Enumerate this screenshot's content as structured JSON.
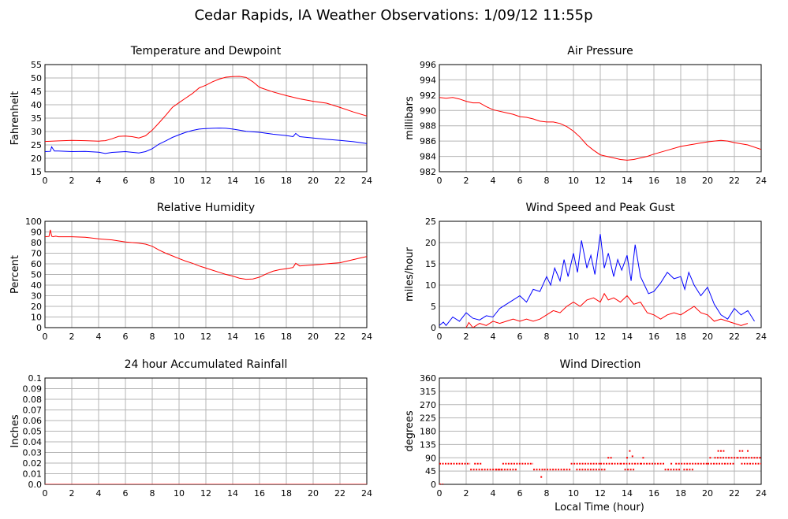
{
  "title": "Cedar Rapids, IA Weather Observations: 1/09/12 11:55p",
  "xlabel_bottom": "Local Time (hour)",
  "chart_data": [
    {
      "id": "temp",
      "type": "line",
      "title": "Temperature and Dewpoint",
      "ylabel": "Fahrenheit",
      "xlim": [
        0,
        24
      ],
      "ylim": [
        15,
        55
      ],
      "yticks": [
        15,
        20,
        25,
        30,
        35,
        40,
        45,
        50,
        55
      ],
      "xticks": [
        0,
        2,
        4,
        6,
        8,
        10,
        12,
        14,
        16,
        18,
        20,
        22,
        24
      ],
      "grid": true,
      "series": [
        {
          "color": "#ff0000",
          "x": [
            0,
            1,
            2,
            3,
            4,
            4.5,
            5,
            5.5,
            6,
            6.5,
            7,
            7.5,
            8,
            8.5,
            9,
            9.5,
            10,
            10.5,
            11,
            11.5,
            12,
            12.5,
            13,
            13.5,
            14,
            14.5,
            15,
            15.5,
            16,
            17,
            18,
            19,
            20,
            21,
            22,
            23,
            24
          ],
          "y": [
            26.3,
            26.5,
            26.7,
            26.6,
            26.4,
            26.6,
            27.3,
            28.2,
            28.3,
            28.1,
            27.6,
            28.4,
            30.5,
            33.2,
            36,
            39,
            40.8,
            42.5,
            44.2,
            46.3,
            47.3,
            48.6,
            49.6,
            50.3,
            50.5,
            50.6,
            50.2,
            48.6,
            46.5,
            44.8,
            43.4,
            42.2,
            41.3,
            40.6,
            39,
            37.3,
            35.8
          ]
        },
        {
          "color": "#0000ff",
          "x": [
            0,
            0.4,
            0.5,
            0.7,
            1,
            2,
            3,
            4,
            4.5,
            5,
            6,
            7,
            7.5,
            8,
            8.5,
            9,
            9.5,
            10,
            10.5,
            11,
            11.5,
            12,
            12.5,
            13,
            13.5,
            14,
            14.5,
            15,
            16,
            17,
            18,
            18.5,
            18.7,
            19,
            20,
            21,
            22,
            23,
            24
          ],
          "y": [
            22.5,
            22.6,
            24.3,
            22.7,
            22.7,
            22.5,
            22.6,
            22.3,
            21.8,
            22.2,
            22.5,
            22,
            22.5,
            23.6,
            25.3,
            26.5,
            27.8,
            28.8,
            29.7,
            30.4,
            30.9,
            31.1,
            31.2,
            31.3,
            31.2,
            30.9,
            30.5,
            30.1,
            29.7,
            29,
            28.5,
            28.1,
            29.3,
            28.1,
            27.6,
            27.1,
            26.7,
            26.2,
            25.5
          ]
        }
      ]
    },
    {
      "id": "pressure",
      "type": "line",
      "title": "Air Pressure",
      "ylabel": "millibars",
      "xlim": [
        0,
        24
      ],
      "ylim": [
        982,
        996
      ],
      "yticks": [
        982,
        984,
        986,
        988,
        990,
        992,
        994,
        996
      ],
      "xticks": [
        0,
        2,
        4,
        6,
        8,
        10,
        12,
        14,
        16,
        18,
        20,
        22,
        24
      ],
      "grid": true,
      "series": [
        {
          "color": "#ff0000",
          "x": [
            0,
            0.5,
            1,
            1.5,
            2,
            2.5,
            3,
            3.5,
            4,
            4.5,
            5,
            5.5,
            6,
            6.5,
            7,
            7.5,
            8,
            8.5,
            9,
            9.5,
            10,
            10.5,
            11,
            11.5,
            12,
            12.5,
            13,
            13.5,
            14,
            14.5,
            15,
            15.5,
            16,
            17,
            18,
            19,
            20,
            20.5,
            21,
            21.5,
            22,
            23,
            24
          ],
          "y": [
            991.7,
            991.6,
            991.7,
            991.5,
            991.2,
            991,
            991,
            990.5,
            990.1,
            989.9,
            989.7,
            989.5,
            989.2,
            989.1,
            988.9,
            988.6,
            988.5,
            988.5,
            988.3,
            987.9,
            987.3,
            986.5,
            985.5,
            984.8,
            984.2,
            984.0,
            983.8,
            983.6,
            983.5,
            983.6,
            983.8,
            984.0,
            984.3,
            984.8,
            985.3,
            985.6,
            985.9,
            986.0,
            986.1,
            986.0,
            985.8,
            985.5,
            984.9
          ]
        }
      ]
    },
    {
      "id": "humidity",
      "type": "line",
      "title": "Relative Humidity",
      "ylabel": "Percent",
      "xlim": [
        0,
        24
      ],
      "ylim": [
        0,
        100
      ],
      "yticks": [
        0,
        10,
        20,
        30,
        40,
        50,
        60,
        70,
        80,
        90,
        100
      ],
      "xticks": [
        0,
        2,
        4,
        6,
        8,
        10,
        12,
        14,
        16,
        18,
        20,
        22,
        24
      ],
      "grid": true,
      "series": [
        {
          "color": "#ff0000",
          "x": [
            0,
            0.3,
            0.4,
            0.5,
            0.6,
            0.8,
            1,
            2,
            3,
            4,
            5,
            6,
            7,
            7.5,
            8,
            8.5,
            9,
            9.5,
            10,
            10.5,
            11,
            11.5,
            12,
            12.5,
            13,
            13.5,
            14,
            14.5,
            15,
            15.5,
            16,
            16.5,
            17,
            17.5,
            18,
            18.5,
            18.7,
            19,
            19.5,
            20,
            20.5,
            21,
            21.5,
            22,
            22.5,
            23,
            23.5,
            24
          ],
          "y": [
            85.5,
            85.8,
            92,
            86,
            85.5,
            86,
            85.5,
            85.5,
            85,
            83.5,
            82.5,
            80.5,
            79.5,
            78.5,
            76.5,
            73,
            70,
            67.5,
            65,
            62.5,
            60.5,
            58,
            56,
            54,
            52,
            50,
            48.5,
            46.5,
            45.5,
            45.8,
            47.5,
            50.5,
            53,
            54.5,
            55.5,
            56.5,
            60.5,
            58,
            58.5,
            59,
            59.5,
            60,
            60.5,
            61,
            62.5,
            64,
            65.5,
            66.8
          ]
        }
      ]
    },
    {
      "id": "wind",
      "type": "line",
      "title": "Wind Speed and Peak Gust",
      "ylabel": "miles/hour",
      "xlim": [
        0,
        24
      ],
      "ylim": [
        0,
        25
      ],
      "yticks": [
        0,
        5,
        10,
        15,
        20,
        25
      ],
      "xticks": [
        0,
        2,
        4,
        6,
        8,
        10,
        12,
        14,
        16,
        18,
        20,
        22,
        24
      ],
      "grid": true,
      "series": [
        {
          "color": "#0000ff",
          "x": [
            0,
            0.3,
            0.5,
            1,
            1.5,
            2,
            2.5,
            3,
            3.5,
            4,
            4.5,
            5,
            5.5,
            6,
            6.5,
            7,
            7.5,
            8,
            8.3,
            8.6,
            9,
            9.3,
            9.6,
            10,
            10.3,
            10.6,
            11,
            11.3,
            11.6,
            12,
            12.3,
            12.6,
            13,
            13.3,
            13.6,
            14,
            14.3,
            14.6,
            15,
            15.3,
            15.6,
            16,
            16.5,
            17,
            17.5,
            18,
            18.3,
            18.6,
            19,
            19.5,
            20,
            20.5,
            21,
            21.5,
            22,
            22.5,
            23,
            23.5
          ],
          "y": [
            0.5,
            1.3,
            0.5,
            2.5,
            1.5,
            3.5,
            2.2,
            1.8,
            2.8,
            2.5,
            4.5,
            5.5,
            6.5,
            7.5,
            6,
            9,
            8.5,
            12,
            10,
            14,
            11,
            16,
            12,
            17.5,
            13,
            20.5,
            14,
            17,
            12.5,
            22,
            14,
            17.5,
            12,
            16,
            13.5,
            17,
            11,
            19.5,
            12,
            10,
            8,
            8.5,
            10.5,
            13,
            11.5,
            12,
            9,
            13,
            10,
            7.5,
            9.5,
            5.5,
            3,
            2,
            4.5,
            3,
            4,
            1.5
          ]
        },
        {
          "color": "#ff0000",
          "x": [
            2,
            2.2,
            2.5,
            3,
            3.5,
            4,
            4.5,
            5,
            5.5,
            6,
            6.5,
            7,
            7.5,
            8,
            8.5,
            9,
            9.5,
            10,
            10.5,
            11,
            11.5,
            12,
            12.3,
            12.6,
            13,
            13.5,
            14,
            14.5,
            15,
            15.5,
            16,
            16.5,
            17,
            17.5,
            18,
            18.5,
            19,
            19.5,
            20,
            20.5,
            21,
            21.5,
            22,
            22.5,
            23
          ],
          "y": [
            0,
            1.2,
            0,
            1,
            0.5,
            1.5,
            1,
            1.5,
            2,
            1.5,
            2,
            1.5,
            2,
            3,
            4,
            3.5,
            5,
            6,
            5,
            6.5,
            7,
            6,
            8,
            6.5,
            7,
            6,
            7.5,
            5.5,
            6,
            3.5,
            3,
            2,
            3,
            3.5,
            3,
            4,
            5,
            3.5,
            3,
            1.5,
            2,
            1.5,
            1,
            0.5,
            1
          ]
        }
      ]
    },
    {
      "id": "rain",
      "type": "line",
      "title": "24 hour Accumulated Rainfall",
      "ylabel": "Inches",
      "xlim": [
        0,
        24
      ],
      "ylim": [
        0,
        0.1
      ],
      "yticks": [
        0.0,
        0.01,
        0.02,
        0.03,
        0.04,
        0.05,
        0.06,
        0.07,
        0.08,
        0.09,
        0.1
      ],
      "ytick_labels": [
        "0.0",
        "0.01",
        "0.02",
        "0.03",
        "0.04",
        "0.05",
        "0.06",
        "0.07",
        "0.08",
        "0.09",
        "0.1"
      ],
      "xticks": [
        0,
        2,
        4,
        6,
        8,
        10,
        12,
        14,
        16,
        18,
        20,
        22,
        24
      ],
      "grid": true,
      "series": [
        {
          "color": "#ff0000",
          "x": [
            0,
            24
          ],
          "y": [
            0,
            0
          ]
        }
      ]
    },
    {
      "id": "direction",
      "type": "scatter",
      "title": "Wind Direction",
      "ylabel": "degrees",
      "xlim": [
        0,
        24
      ],
      "ylim": [
        0,
        360
      ],
      "yticks": [
        0,
        45,
        90,
        135,
        180,
        225,
        270,
        315,
        360
      ],
      "xticks": [
        0,
        2,
        4,
        6,
        8,
        10,
        12,
        14,
        16,
        18,
        20,
        22,
        24
      ],
      "grid": true,
      "series": [
        {
          "color": "#ff0000",
          "segments": [
            {
              "x0": 0.0,
              "x1": 0.3,
              "y": 0
            },
            {
              "x0": 0.0,
              "x1": 2.3,
              "y": 70
            },
            {
              "x0": 2.3,
              "x1": 4.7,
              "y": 50
            },
            {
              "x0": 2.6,
              "x1": 3.2,
              "y": 70
            },
            {
              "x0": 4.7,
              "x1": 7.0,
              "y": 70
            },
            {
              "x0": 4.2,
              "x1": 5.8,
              "y": 50
            },
            {
              "x0": 7.0,
              "x1": 7.8,
              "y": 50
            },
            {
              "x0": 7.8,
              "x1": 9.8,
              "y": 50
            },
            {
              "x0": 9.8,
              "x1": 12.0,
              "y": 70
            },
            {
              "x0": 10.2,
              "x1": 12.4,
              "y": 50
            },
            {
              "x0": 12.0,
              "x1": 13.5,
              "y": 70
            },
            {
              "x0": 13.5,
              "x1": 15.0,
              "y": 70
            },
            {
              "x0": 13.8,
              "x1": 14.6,
              "y": 50
            },
            {
              "x0": 15.0,
              "x1": 16.8,
              "y": 70
            },
            {
              "x0": 16.8,
              "x1": 18.0,
              "y": 50
            },
            {
              "x0": 17.6,
              "x1": 20.0,
              "y": 70
            },
            {
              "x0": 18.2,
              "x1": 19.0,
              "y": 50
            },
            {
              "x0": 20.0,
              "x1": 22.0,
              "y": 70
            },
            {
              "x0": 20.5,
              "x1": 22.2,
              "y": 90
            },
            {
              "x0": 22.2,
              "x1": 24.0,
              "y": 90
            },
            {
              "x0": 22.5,
              "x1": 24.0,
              "y": 70
            }
          ],
          "points": [
            {
              "x": 7.6,
              "y": 25
            },
            {
              "x": 12.6,
              "y": 90
            },
            {
              "x": 12.8,
              "y": 90
            },
            {
              "x": 14.2,
              "y": 113
            },
            {
              "x": 14.4,
              "y": 95
            },
            {
              "x": 15.2,
              "y": 90
            },
            {
              "x": 20.8,
              "y": 113
            },
            {
              "x": 21.0,
              "y": 113
            },
            {
              "x": 21.2,
              "y": 113
            },
            {
              "x": 22.4,
              "y": 113
            },
            {
              "x": 22.6,
              "y": 113
            },
            {
              "x": 23.0,
              "y": 113
            },
            {
              "x": 20.2,
              "y": 90
            },
            {
              "x": 14.0,
              "y": 90
            },
            {
              "x": 17.3,
              "y": 70
            }
          ]
        }
      ]
    }
  ]
}
